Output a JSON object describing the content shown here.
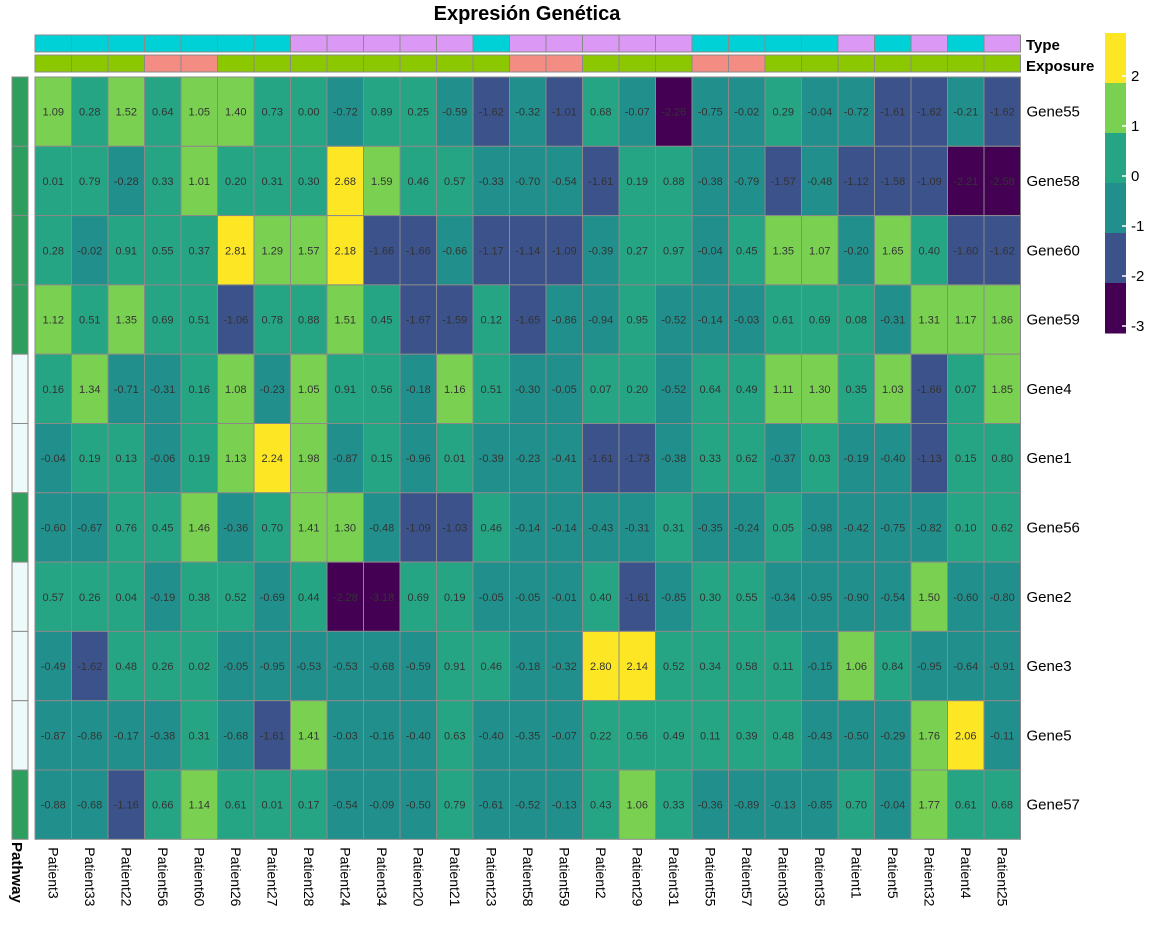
{
  "chart_data": {
    "type": "heatmap",
    "title": "Expresión Genética",
    "columns": [
      "Patient3",
      "Patient33",
      "Patient22",
      "Patient56",
      "Patient60",
      "Patient26",
      "Patient27",
      "Patient28",
      "Patient24",
      "Patient34",
      "Patient20",
      "Patient21",
      "Patient23",
      "Patient58",
      "Patient59",
      "Patient2",
      "Patient29",
      "Patient31",
      "Patient55",
      "Patient57",
      "Patient30",
      "Patient35",
      "Patient1",
      "Patient5",
      "Patient32",
      "Patient4",
      "Patient25"
    ],
    "rows": [
      "Gene55",
      "Gene58",
      "Gene60",
      "Gene59",
      "Gene4",
      "Gene1",
      "Gene56",
      "Gene2",
      "Gene3",
      "Gene5",
      "Gene57"
    ],
    "values": [
      [
        1.09,
        0.28,
        1.52,
        0.64,
        1.05,
        1.4,
        0.73,
        -0.0,
        -0.72,
        0.89,
        0.25,
        -0.59,
        -1.62,
        -0.32,
        -1.01,
        0.68,
        -0.07,
        -2.26,
        -0.75,
        -0.02,
        0.29,
        -0.04,
        -0.72,
        -1.61,
        -1.62,
        -0.21,
        -1.62
      ],
      [
        0.01,
        0.79,
        -0.28,
        0.33,
        1.01,
        0.2,
        0.31,
        0.3,
        2.68,
        1.59,
        0.46,
        0.57,
        -0.33,
        -0.7,
        -0.54,
        -1.61,
        0.19,
        0.88,
        -0.38,
        -0.79,
        -1.57,
        -0.48,
        -1.12,
        -1.58,
        -1.09,
        -2.21,
        -2.58
      ],
      [
        0.28,
        -0.02,
        0.91,
        0.55,
        0.37,
        2.81,
        1.29,
        1.57,
        2.18,
        -1.66,
        -1.66,
        -0.66,
        -1.17,
        -1.14,
        -1.09,
        -0.39,
        0.27,
        0.97,
        -0.04,
        0.45,
        1.35,
        1.07,
        -0.2,
        1.65,
        0.4,
        -1.6,
        -1.62
      ],
      [
        1.12,
        0.51,
        1.35,
        0.69,
        0.51,
        -1.06,
        0.78,
        0.88,
        1.51,
        0.45,
        -1.67,
        -1.59,
        0.12,
        -1.65,
        -0.86,
        -0.94,
        0.95,
        -0.52,
        -0.14,
        -0.03,
        0.61,
        0.69,
        0.08,
        -0.31,
        1.31,
        1.17,
        1.86
      ],
      [
        0.16,
        1.34,
        -0.71,
        -0.31,
        0.16,
        1.08,
        -0.23,
        1.05,
        0.91,
        0.56,
        -0.18,
        1.16,
        0.51,
        -0.3,
        -0.05,
        0.07,
        0.2,
        -0.52,
        0.64,
        0.49,
        1.11,
        1.3,
        0.35,
        1.03,
        -1.66,
        0.07,
        1.85
      ],
      [
        -0.04,
        0.19,
        0.13,
        -0.06,
        0.19,
        1.13,
        2.24,
        1.98,
        -0.87,
        0.15,
        -0.96,
        0.01,
        -0.39,
        -0.23,
        -0.41,
        -1.61,
        -1.73,
        -0.38,
        0.33,
        0.62,
        -0.37,
        0.03,
        -0.19,
        -0.4,
        -1.13,
        0.15,
        0.8
      ],
      [
        -0.6,
        -0.67,
        0.76,
        0.45,
        1.46,
        -0.36,
        0.7,
        1.41,
        1.3,
        -0.48,
        -1.09,
        -1.03,
        0.46,
        -0.14,
        -0.14,
        -0.43,
        -0.31,
        0.31,
        -0.35,
        -0.24,
        0.05,
        -0.98,
        -0.42,
        -0.75,
        -0.82,
        0.1,
        0.62
      ],
      [
        0.57,
        0.26,
        0.04,
        -0.19,
        0.38,
        0.52,
        -0.69,
        0.44,
        -2.28,
        -3.18,
        0.69,
        0.19,
        -0.05,
        -0.05,
        -0.01,
        0.4,
        -1.61,
        -0.85,
        0.3,
        0.55,
        -0.34,
        -0.95,
        -0.9,
        -0.54,
        1.5,
        -0.6,
        -0.8
      ],
      [
        -0.49,
        -1.62,
        0.48,
        0.26,
        0.02,
        -0.05,
        -0.95,
        -0.53,
        -0.53,
        -0.68,
        -0.59,
        0.91,
        0.46,
        -0.18,
        -0.32,
        2.8,
        2.14,
        0.52,
        0.34,
        0.58,
        0.11,
        -0.15,
        1.06,
        0.84,
        -0.95,
        -0.64,
        -0.91
      ],
      [
        -0.87,
        -0.86,
        -0.17,
        -0.38,
        0.31,
        -0.68,
        -1.61,
        1.41,
        -0.03,
        -0.16,
        -0.4,
        0.63,
        -0.4,
        -0.35,
        -0.07,
        0.22,
        0.56,
        0.49,
        0.11,
        0.39,
        0.48,
        -0.43,
        -0.5,
        -0.29,
        1.76,
        2.06,
        -0.11
      ],
      [
        -0.88,
        -0.68,
        -1.16,
        0.66,
        1.14,
        0.61,
        0.01,
        0.17,
        -0.54,
        -0.09,
        -0.5,
        0.79,
        -0.61,
        -0.52,
        -0.13,
        0.43,
        1.06,
        0.33,
        -0.36,
        -0.89,
        -0.13,
        -0.85,
        0.7,
        -0.04,
        1.77,
        0.61,
        0.68
      ]
    ],
    "color_scale": {
      "breaks": [
        -3,
        -2,
        -1,
        0,
        1,
        2
      ],
      "ticks": [
        "2",
        "1",
        "0",
        "-1",
        "-2",
        "-3"
      ],
      "colors": [
        "#440154",
        "#3b528b",
        "#21908c",
        "#25a584",
        "#7ad151",
        "#fde725"
      ]
    },
    "grid": true
  },
  "annotations": {
    "type": {
      "label": "Type",
      "values": [
        "A",
        "A",
        "A",
        "A",
        "A",
        "A",
        "A",
        "B",
        "B",
        "B",
        "B",
        "B",
        "A",
        "B",
        "B",
        "B",
        "B",
        "B",
        "A",
        "A",
        "A",
        "A",
        "B",
        "A",
        "B",
        "A",
        "B"
      ],
      "colors": {
        "A": "#00d1d6",
        "B": "#db98f4"
      }
    },
    "exposure": {
      "label": "Exposure",
      "values": [
        "Y",
        "Y",
        "Y",
        "N",
        "N",
        "Y",
        "Y",
        "Y",
        "Y",
        "Y",
        "Y",
        "Y",
        "Y",
        "N",
        "N",
        "Y",
        "Y",
        "Y",
        "N",
        "N",
        "Y",
        "Y",
        "Y",
        "Y",
        "Y",
        "Y",
        "Y"
      ],
      "colors": {
        "Y": "#8cc800",
        "N": "#f38c82"
      }
    },
    "pathway": {
      "label": "Pathway",
      "values": [
        "P1",
        "P1",
        "P1",
        "P1",
        "P2",
        "P2",
        "P1",
        "P2",
        "P2",
        "P2",
        "P1"
      ],
      "colors": {
        "P1": "#2e9e5e",
        "P2": "#eefafa"
      }
    }
  }
}
